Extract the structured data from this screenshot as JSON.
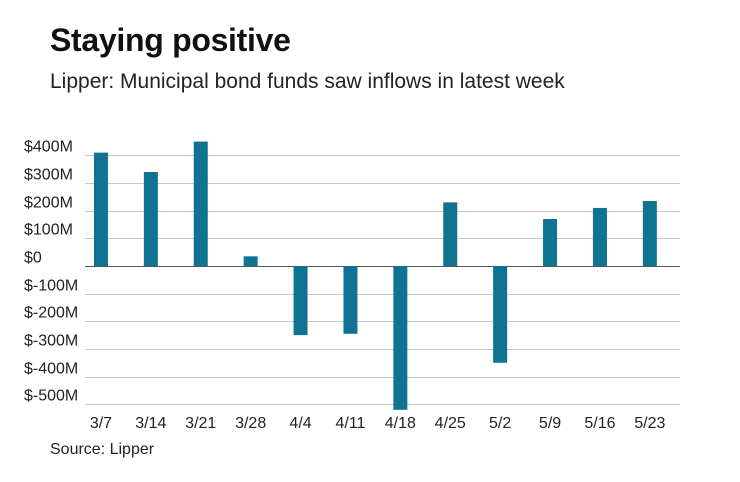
{
  "title": "Staying positive",
  "subtitle": "Lipper: Municipal bond funds saw inflows in latest week",
  "source": "Source: Lipper",
  "colors": {
    "bar": "#0f7391",
    "grid": "#c8c8c8",
    "zero_line": "#555555",
    "text": "#222222"
  },
  "chart_data": {
    "type": "bar",
    "categories": [
      "3/7",
      "3/14",
      "3/21",
      "3/28",
      "4/4",
      "4/11",
      "4/18",
      "4/25",
      "5/2",
      "5/9",
      "5/16",
      "5/23"
    ],
    "values": [
      410,
      340,
      450,
      35,
      -250,
      -245,
      -520,
      230,
      -350,
      170,
      210,
      235
    ],
    "unit": "$M",
    "y_ticks": [
      400,
      300,
      200,
      100,
      0,
      -100,
      -200,
      -300,
      -400,
      -500
    ],
    "y_tick_labels": [
      "$400M",
      "$300M",
      "$200M",
      "$100M",
      "$0",
      "$-100M",
      "$-200M",
      "$-300M",
      "$-400M",
      "$-500M"
    ],
    "ylim": [
      -520,
      450
    ],
    "grid": true,
    "legend": "none"
  }
}
